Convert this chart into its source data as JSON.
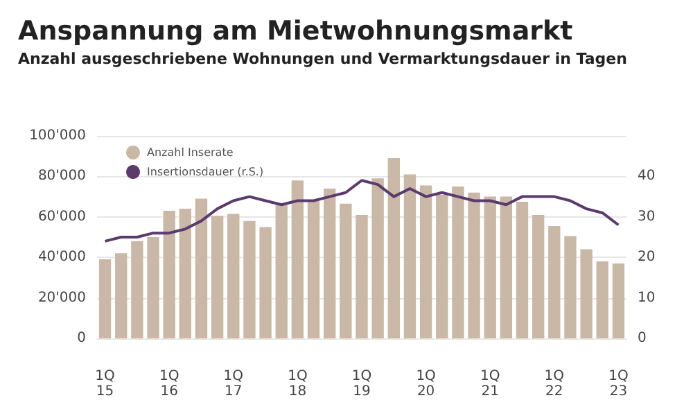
{
  "chart_data": {
    "type": "bar",
    "title": "Anspannung am Mietwohnungsmarkt",
    "subtitle": "Anzahl ausgeschriebene Wohnungen und Vermarktungsdauer in Tagen",
    "categories": [
      "1Q\n15",
      null,
      null,
      null,
      "1Q\n16",
      null,
      null,
      null,
      "1Q\n17",
      null,
      null,
      null,
      "1Q\n18",
      null,
      null,
      null,
      "1Q\n19",
      null,
      null,
      null,
      "1Q\n20",
      null,
      null,
      null,
      "1Q\n21",
      null,
      null,
      null,
      "1Q\n22",
      null,
      null,
      null,
      "1Q\n23"
    ],
    "series": [
      {
        "name": "Anzahl Inserate",
        "color": "#c9b8a6",
        "values": [
          39000,
          42000,
          48000,
          50000,
          63000,
          64000,
          69000,
          60500,
          61500,
          58000,
          55000,
          66000,
          78000,
          68000,
          74000,
          66500,
          61000,
          79000,
          89000,
          81000,
          75500,
          71000,
          75000,
          72000,
          70000,
          70000,
          67500,
          61000,
          55500,
          50500,
          44000,
          38000,
          37000
        ]
      },
      {
        "name": "Insertionsdauer (r.S.)",
        "type": "line",
        "axis": "y2",
        "color": "#5b3a6e",
        "values": [
          24,
          25,
          25,
          26,
          26,
          27,
          29,
          32,
          34,
          35,
          34,
          33,
          34,
          34,
          35,
          36,
          39,
          38,
          35,
          37,
          35,
          36,
          35,
          34,
          34,
          33,
          35,
          35,
          35,
          34,
          32,
          31,
          28
        ]
      }
    ],
    "ylim": [
      0,
      100000
    ],
    "yticks": [
      {
        "value": 0,
        "label": "0"
      },
      {
        "value": 20000,
        "label": "20'000"
      },
      {
        "value": 40000,
        "label": "40'000"
      },
      {
        "value": 60000,
        "label": "60'000"
      },
      {
        "value": 80000,
        "label": "80'000"
      },
      {
        "value": 100000,
        "label": "100'000"
      }
    ],
    "y2lim": [
      0,
      50
    ],
    "y2ticks": [
      0,
      10,
      20,
      30,
      40
    ],
    "grid": "y",
    "legend": "top left",
    "marker": "none",
    "line_style": "solid"
  }
}
